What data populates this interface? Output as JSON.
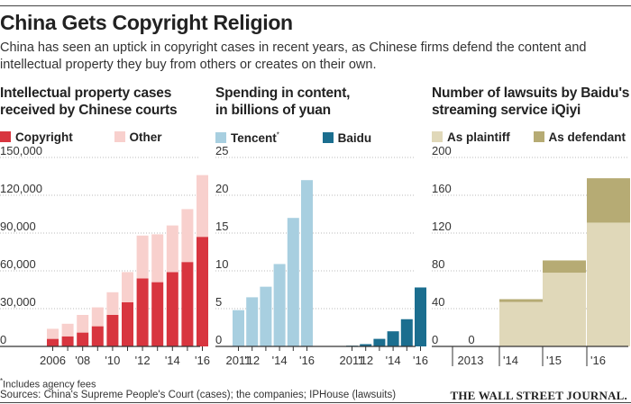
{
  "header": {
    "title": "China Gets Copyright Religion",
    "subtitle": "China has seen an uptick in copyright cases in recent years, as Chinese firms defend the content and intellectual property they buy from others or creates on their own."
  },
  "colors": {
    "copyright": "#d8353f",
    "other": "#f8d0cd",
    "tencent": "#a8cfe0",
    "baidu": "#1b6e8f",
    "plaintiff": "#e0d8b9",
    "defendant": "#b6ab74",
    "grid": "#bbbbbb",
    "axis": "#333333"
  },
  "chart_data": [
    {
      "type": "bar",
      "stacked": true,
      "title": "Intellectual property cases received by Chinese courts",
      "title_lines": [
        "Intellectual property cases",
        "received by Chinese courts"
      ],
      "legend": [
        "Copyright",
        "Other"
      ],
      "x": [
        2006,
        2007,
        2008,
        2009,
        2010,
        2011,
        2012,
        2013,
        2014,
        2015,
        2016
      ],
      "xtick_labels": [
        "2006",
        "",
        "'08",
        "",
        "'10",
        "",
        "'12",
        "",
        "'14",
        "",
        "'16"
      ],
      "ylim": [
        0,
        150000
      ],
      "yticks": [
        0,
        30000,
        60000,
        90000,
        120000,
        150000
      ],
      "ytick_labels": [
        "0",
        "30,000",
        "60,000",
        "90,000",
        "120,000",
        "150,000"
      ],
      "series": [
        {
          "name": "Copyright",
          "values": [
            6000,
            8000,
            11000,
            16000,
            25000,
            35000,
            54000,
            51000,
            59000,
            67000,
            87000
          ]
        },
        {
          "name": "Other",
          "values": [
            8000,
            10000,
            14000,
            15000,
            18000,
            24000,
            34000,
            38000,
            37000,
            42000,
            49000
          ]
        }
      ]
    },
    {
      "type": "bar",
      "title": "Spending in content, in billions of yuan",
      "title_lines": [
        "Spending in content,",
        "in billions of yuan"
      ],
      "legend": [
        "Tencent",
        "Baidu"
      ],
      "legend_marks": [
        "*",
        ""
      ],
      "ylim": [
        0,
        25
      ],
      "yticks": [
        0,
        5,
        10,
        15,
        20,
        25
      ],
      "ytick_labels": [
        "0",
        "5",
        "10",
        "15",
        "20",
        "25"
      ],
      "groups": [
        {
          "name": "Tencent",
          "x": [
            2011,
            2012,
            2013,
            2014,
            2015,
            2016
          ],
          "values": [
            4.8,
            6.5,
            7.9,
            10.9,
            17,
            22
          ],
          "xtick_labels": [
            "2011",
            "'12",
            "",
            "'14",
            "",
            "'16"
          ]
        },
        {
          "name": "Baidu",
          "x": [
            2011,
            2012,
            2013,
            2014,
            2015,
            2016
          ],
          "values": [
            0.1,
            0.3,
            1,
            2,
            3.6,
            7.8
          ],
          "xtick_labels": [
            "2011",
            "'12",
            "",
            "'14",
            "",
            "'16"
          ]
        }
      ]
    },
    {
      "type": "bar",
      "stacked": true,
      "title": "Number of lawsuits by Baidu's streaming service iQiyi",
      "title_lines": [
        "Number of lawsuits by Baidu's",
        "streaming service iQiyi"
      ],
      "legend": [
        "As plaintiff",
        "As defendant"
      ],
      "categories": [
        "2013",
        "'14",
        "'15",
        "'16"
      ],
      "ylim": [
        0,
        200
      ],
      "yticks": [
        0,
        40,
        80,
        120,
        160,
        200
      ],
      "ytick_labels": [
        "0",
        "40",
        "80",
        "120",
        "160",
        "200"
      ],
      "bar_labels": [
        "0",
        "",
        "",
        ""
      ],
      "series": [
        {
          "name": "As plaintiff",
          "values": [
            0,
            47,
            78,
            131
          ]
        },
        {
          "name": "As defendant",
          "values": [
            0,
            3,
            13,
            47
          ]
        }
      ]
    }
  ],
  "footer": {
    "footnote_mark": "*",
    "footnote": "Includes agency fees",
    "sources": "Sources: China's Supreme People's Court (cases); the companies; IPHouse (lawsuits)",
    "publisher": "THE WALL STREET JOURNAL."
  }
}
